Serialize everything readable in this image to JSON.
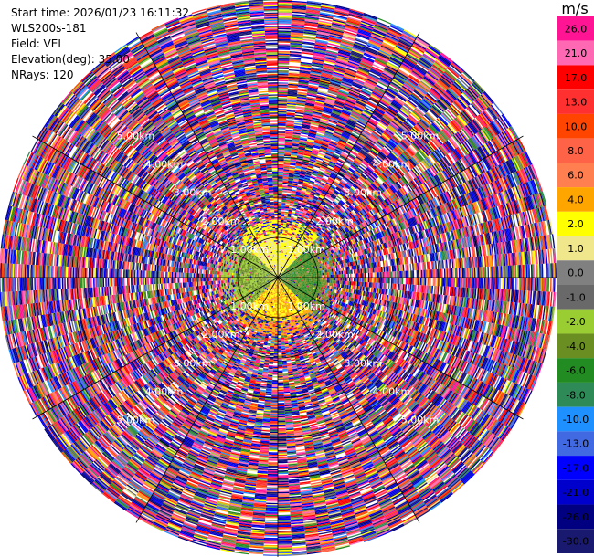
{
  "header": {
    "start_time": "Start time: 2026/01/23 16:11:32",
    "instrument": "WLS200s-181",
    "field": "Field: VEL",
    "elevation": "Elevation(deg): 35.00",
    "nrays": "NRays: 120"
  },
  "colorbar": {
    "unit": "m/s",
    "ticks": [
      "26.0",
      "21.0",
      "17.0",
      "13.0",
      "10.0",
      "8.0",
      "6.0",
      "4.0",
      "2.0",
      "1.0",
      "0.0",
      "-1.0",
      "-2.0",
      "-4.0",
      "-6.0",
      "-8.0",
      "-10.0",
      "-13.0",
      "-17.0",
      "-21.0",
      "-26.0",
      "-30.0"
    ],
    "colors": [
      "#ff1493",
      "#ff69b4",
      "#ff0000",
      "#ff3030",
      "#ff4500",
      "#ff6347",
      "#ff7f50",
      "#ffa500",
      "#ffff00",
      "#f0e68c",
      "#808080",
      "#696969",
      "#9acd32",
      "#6b8e23",
      "#228b22",
      "#2e8b57",
      "#1e90ff",
      "#4169e1",
      "#0000ff",
      "#0000cd",
      "#000080",
      "#191970"
    ]
  },
  "chart_data": {
    "type": "ppi",
    "field": "VEL",
    "units": "m/s",
    "nrays": 120,
    "elevation_deg": 35.0,
    "range_rings_km": [
      1.0,
      2.0,
      3.0,
      4.0,
      5.0
    ],
    "ring_labels": [
      "1.00km",
      "2.00km",
      "3.00km",
      "4.00km",
      "5.00km"
    ],
    "near_range_km": 1.1,
    "near_range_values_mps": {
      "north": 2.0,
      "west": -2.0,
      "south": 4.0,
      "east": -4.0
    },
    "far_range_note": "noise"
  }
}
